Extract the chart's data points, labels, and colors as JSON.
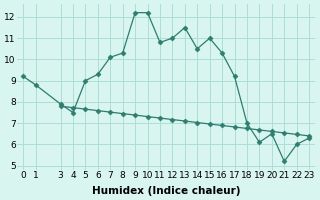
{
  "xlabel": "Humidex (Indice chaleur)",
  "x_values": [
    0,
    1,
    3,
    4,
    5,
    6,
    7,
    8,
    9,
    10,
    11,
    12,
    13,
    14,
    15,
    16,
    17,
    18,
    19,
    20,
    21,
    22,
    23
  ],
  "y_values": [
    9.2,
    8.8,
    7.9,
    7.5,
    9.0,
    9.3,
    10.1,
    10.3,
    12.2,
    12.2,
    10.8,
    11.0,
    11.5,
    10.5,
    11.0,
    10.3,
    9.2,
    7.0,
    6.1,
    6.5,
    5.2,
    6.0,
    6.3
  ],
  "trend_x": [
    3,
    4,
    5,
    6,
    7,
    8,
    9,
    10,
    11,
    12,
    13,
    14,
    15,
    16,
    17,
    18,
    19,
    20,
    21,
    22,
    23
  ],
  "trend_y": [
    7.8,
    7.73,
    7.66,
    7.59,
    7.52,
    7.45,
    7.38,
    7.31,
    7.24,
    7.17,
    7.1,
    7.03,
    6.96,
    6.89,
    6.82,
    6.75,
    6.68,
    6.61,
    6.54,
    6.47,
    6.4
  ],
  "line_color": "#2e7d6e",
  "marker": "D",
  "marker_size": 2.5,
  "bg_color": "#d8f5f0",
  "grid_color": "#aeddd8",
  "ylim": [
    4.8,
    12.6
  ],
  "xlim": [
    -0.5,
    23.5
  ],
  "xticks": [
    0,
    1,
    3,
    4,
    5,
    6,
    7,
    8,
    9,
    10,
    11,
    12,
    13,
    14,
    15,
    16,
    17,
    18,
    19,
    20,
    21,
    22,
    23
  ],
  "yticks": [
    5,
    6,
    7,
    8,
    9,
    10,
    11,
    12
  ],
  "tick_fontsize": 6.5,
  "label_fontsize": 7.5
}
